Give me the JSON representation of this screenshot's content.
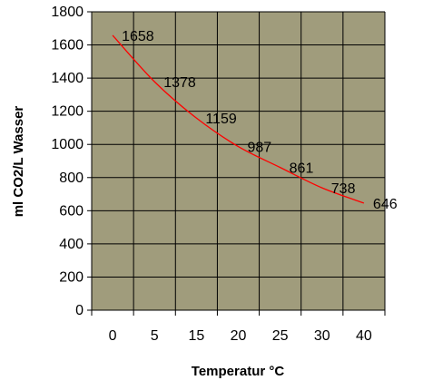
{
  "chart_data": {
    "type": "line",
    "title": "",
    "xlabel": "Temperatur °C",
    "ylabel": "ml CO2/L Wasser",
    "x_categories": [
      "0",
      "5",
      "15",
      "20",
      "25",
      "30",
      "40"
    ],
    "y_ticks": [
      "0",
      "200",
      "400",
      "600",
      "800",
      "1000",
      "1200",
      "1400",
      "1600",
      "1800"
    ],
    "ylim": [
      0,
      1800
    ],
    "grid": true,
    "legend": "none",
    "series": [
      {
        "x_index": [
          0,
          1,
          2,
          3,
          4,
          5,
          6
        ],
        "values": [
          1658,
          1378,
          1159,
          987,
          861,
          738,
          646
        ],
        "labels": [
          "1658",
          "1378",
          "1159",
          "987",
          "861",
          "738",
          "646"
        ],
        "color": "#ff0000"
      }
    ],
    "plot_background": "#a09c7c",
    "grid_color": "#000000"
  }
}
